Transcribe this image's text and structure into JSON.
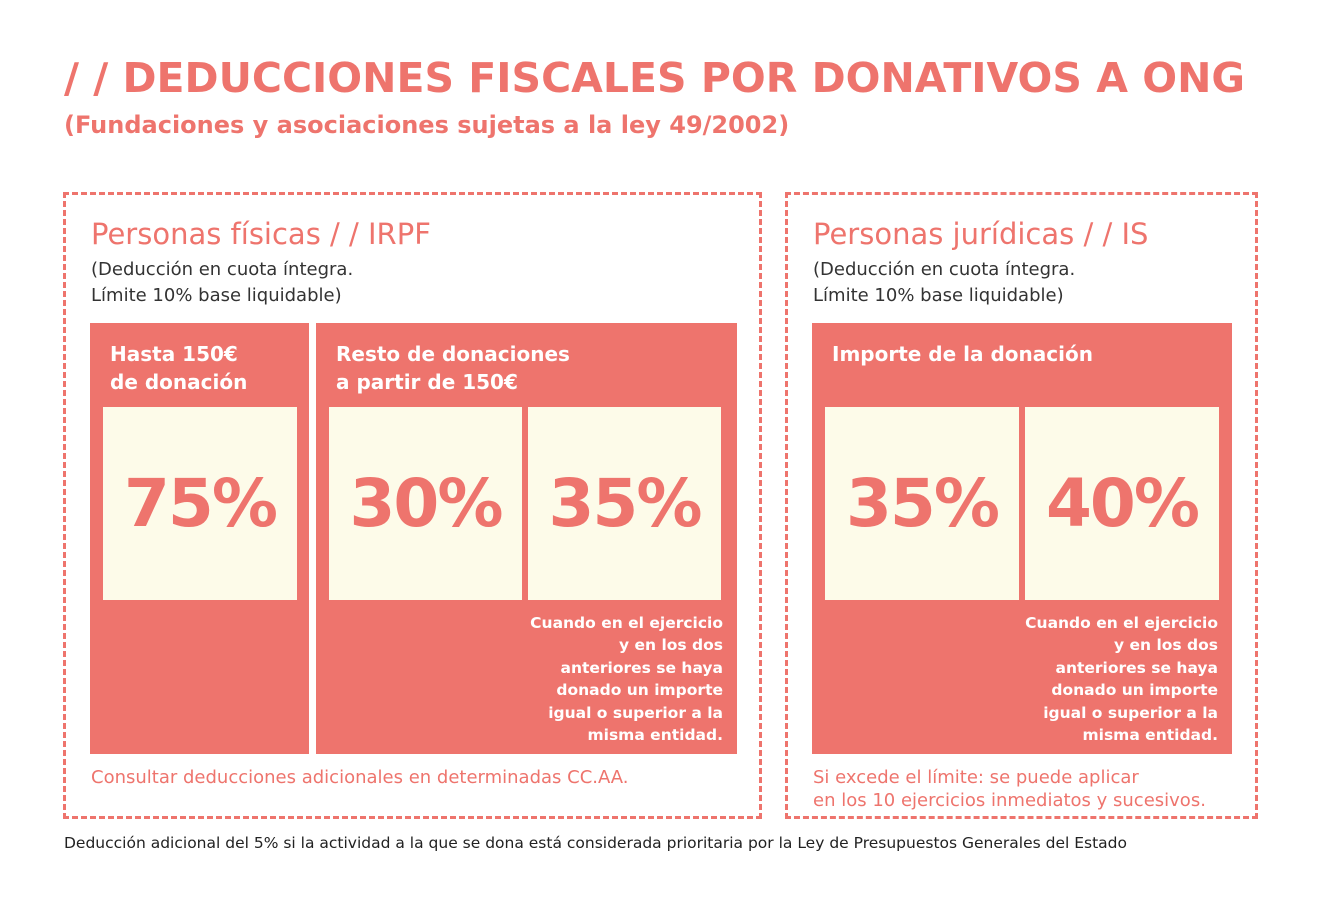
{
  "header": {
    "title": "/ / DEDUCCIONES FISCALES POR DONATIVOS A ONG",
    "subtitle": "(Fundaciones y asociaciones sujetas a la ley 49/2002)"
  },
  "irpf": {
    "title": "Personas físicas / / IRPF",
    "note_line1": "(Deducción en cuota íntegra.",
    "note_line2": "Límite 10% base liquidable)",
    "block1": {
      "label_line1": "Hasta 150€",
      "label_line2": "de donación",
      "value": "75%"
    },
    "block2": {
      "label_line1": "Resto de donaciones",
      "label_line2": "a partir de 150€",
      "value1": "30%",
      "value2": "35%",
      "caption": "Cuando en el ejercicio\ny en los dos\nanteriores se haya\ndonado un importe\nigual o superior a la\nmisma entidad."
    },
    "footnote": "Consultar deducciones adicionales en determinadas CC.AA."
  },
  "is": {
    "title": "Personas jurídicas / / IS",
    "note_line1": "(Deducción en cuota íntegra.",
    "note_line2": "Límite 10% base liquidable)",
    "block": {
      "label": "Importe de la donación",
      "value1": "35%",
      "value2": "40%",
      "caption": "Cuando en el ejercicio\ny en los dos\nanteriores se haya\ndonado un importe\nigual o superior a la\nmisma entidad."
    },
    "footnote_line1": "Si excede el límite: se puede aplicar",
    "footnote_line2": "en los 10 ejercicios inmediatos y sucesivos."
  },
  "bottom_note": "Deducción adicional del 5% si la actividad a la que se dona está considerada prioritaria por la Ley de Presupuestos Generales del Estado",
  "colors": {
    "accent": "#ee746d",
    "card": "#fdfbe9",
    "text": "#333333"
  }
}
